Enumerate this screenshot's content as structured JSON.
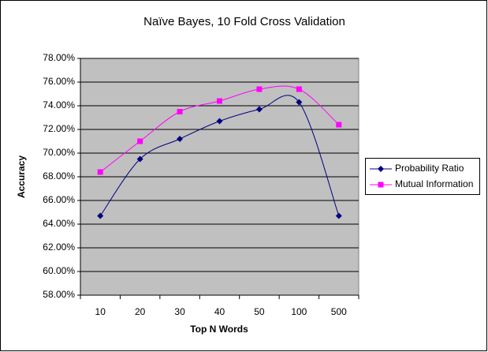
{
  "chart_data": {
    "type": "line",
    "title": "Naïve Bayes, 10 Fold Cross Validation",
    "x_label": "Top N Words",
    "y_label": "Accuracy",
    "categories": [
      "10",
      "20",
      "30",
      "40",
      "50",
      "100",
      "500"
    ],
    "series": [
      {
        "name": "Probability Ratio",
        "color": "#000080",
        "marker": "diamond",
        "values": [
          64.7,
          69.5,
          71.2,
          72.7,
          73.7,
          74.3,
          64.7
        ]
      },
      {
        "name": "Mutual Information",
        "color": "#FF00FF",
        "marker": "square",
        "values": [
          68.4,
          71.0,
          73.5,
          74.4,
          75.4,
          75.4,
          72.4
        ]
      }
    ],
    "ylim": [
      58,
      78
    ],
    "yticks": [
      {
        "value": 58,
        "label": "58.00%"
      },
      {
        "value": 60,
        "label": "60.00%"
      },
      {
        "value": 62,
        "label": "62.00%"
      },
      {
        "value": 64,
        "label": "64.00%"
      },
      {
        "value": 66,
        "label": "66.00%"
      },
      {
        "value": 68,
        "label": "68.00%"
      },
      {
        "value": 70,
        "label": "70.00%"
      },
      {
        "value": 72,
        "label": "72.00%"
      },
      {
        "value": 74,
        "label": "74.00%"
      },
      {
        "value": 76,
        "label": "76.00%"
      },
      {
        "value": 78,
        "label": "78.00%"
      }
    ],
    "grid": true,
    "legend": "right"
  }
}
